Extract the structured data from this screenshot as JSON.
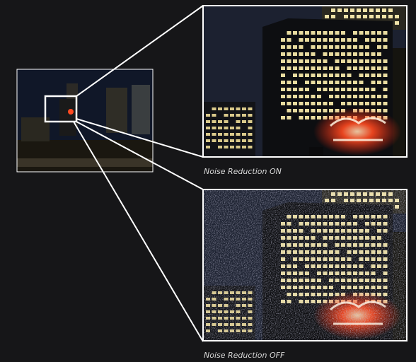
{
  "panels": [
    {
      "caption": "Noise Reduction ON"
    },
    {
      "caption": "Noise Reduction OFF"
    }
  ]
}
